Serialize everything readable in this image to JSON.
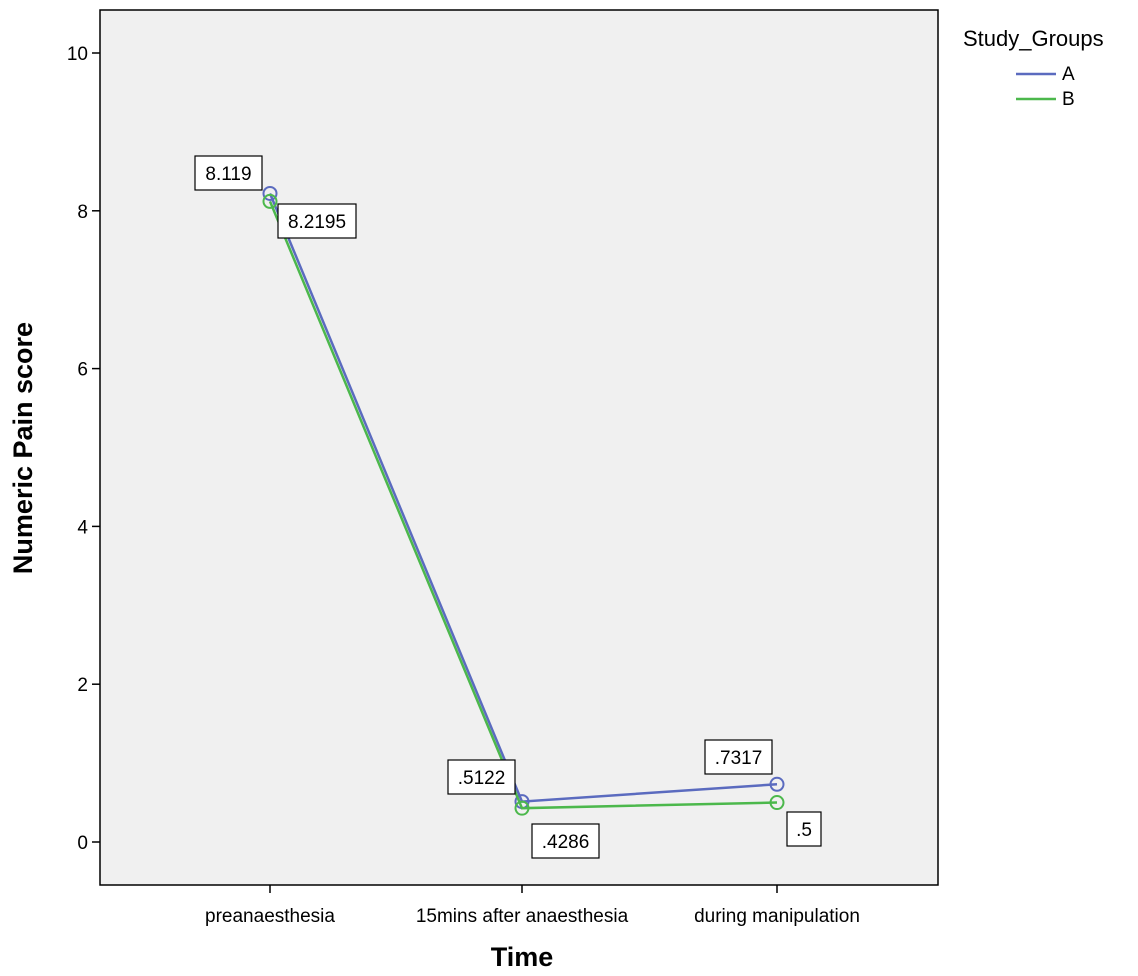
{
  "chart_data": {
    "type": "line",
    "title": "",
    "xlabel": "Time",
    "ylabel": "Numeric Pain score",
    "categories": [
      "preanaesthesia",
      "15mins after anaesthesia",
      "during manipulation"
    ],
    "ylim": [
      0,
      10
    ],
    "yticks": [
      "0",
      "2",
      "4",
      "6",
      "8",
      "10"
    ],
    "grid": false,
    "legend": {
      "title": "Study_Groups",
      "position": "top-right outside"
    },
    "series": [
      {
        "name": "A",
        "color": "#5b6bbf",
        "values": [
          8.2195,
          0.5122,
          0.7317
        ],
        "labels": [
          "8.2195",
          ".5122",
          ".7317"
        ]
      },
      {
        "name": "B",
        "color": "#4cb84c",
        "values": [
          8.119,
          0.4286,
          0.5
        ],
        "labels": [
          "8.119",
          ".4286",
          ".5"
        ]
      }
    ]
  },
  "colors": {
    "plot_background": "#f0f0f0",
    "axis": "#000000"
  }
}
